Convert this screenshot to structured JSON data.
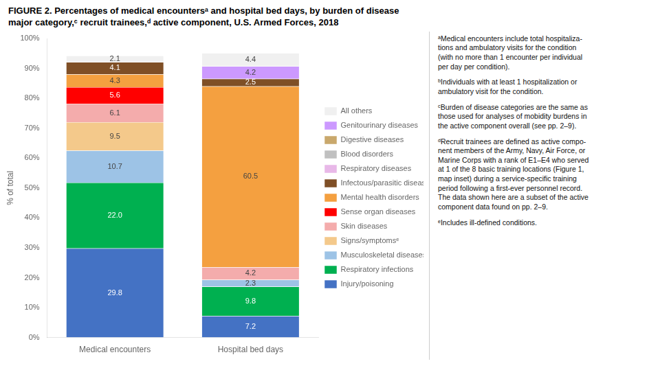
{
  "chart_data": {
    "type": "bar",
    "title": "FIGURE 2. Percentages of medical encountersᵃ and hospital bed days, by burden of disease\nmajor category,ᶜ recruit trainees,ᵈ active component, U.S. Armed Forces, 2018",
    "ylabel": "% of total",
    "categories": [
      "Medical encounters",
      "Hospital bed days"
    ],
    "series": [
      {
        "name": "Injury/poisoning",
        "color": "#4472c4",
        "values": [
          29.8,
          7.2
        ]
      },
      {
        "name": "Respiratory infections",
        "color": "#00b050",
        "values": [
          22.0,
          9.8
        ]
      },
      {
        "name": "Musculoskeletal diseases",
        "color": "#9dc3e6",
        "values": [
          10.7,
          2.3
        ]
      },
      {
        "name": "Signs/symptomsᵉ",
        "color": "#f4c98b",
        "values": [
          9.5,
          0.0
        ]
      },
      {
        "name": "Skin diseases",
        "color": "#f4acac",
        "values": [
          6.1,
          4.2
        ]
      },
      {
        "name": "Sense organ diseases",
        "color": "#ff0000",
        "values": [
          5.6,
          0.0
        ]
      },
      {
        "name": "Mental health disorders",
        "color": "#f4a040",
        "values": [
          4.3,
          60.5
        ]
      },
      {
        "name": "Infectous/parasitic diseases",
        "color": "#7f4f26",
        "values": [
          4.1,
          2.5
        ]
      },
      {
        "name": "Respiratory diseases",
        "color": "#e8b8e8",
        "values": [
          0.0,
          0.0
        ]
      },
      {
        "name": "Blood disorders",
        "color": "#c0c0c0",
        "values": [
          0.0,
          0.0
        ]
      },
      {
        "name": "Digestive diseases",
        "color": "#c9a86c",
        "values": [
          0.0,
          0.0
        ]
      },
      {
        "name": "Genitourinary diseases",
        "color": "#cc99ff",
        "values": [
          0.0,
          4.2
        ]
      },
      {
        "name": "All others",
        "color": "#f0f0f0",
        "values": [
          2.1,
          4.4
        ]
      }
    ],
    "stacked": true,
    "data_labels": true,
    "legend": "right",
    "grid": false,
    "ylim": [
      0,
      100
    ],
    "yticks": [
      {
        "value": 0,
        "label": "0%"
      },
      {
        "value": 10,
        "label": "10%"
      },
      {
        "value": 20,
        "label": "20%"
      },
      {
        "value": 30,
        "label": "30%"
      },
      {
        "value": 40,
        "label": "40%"
      },
      {
        "value": 50,
        "label": "50%"
      },
      {
        "value": 60,
        "label": "60%"
      },
      {
        "value": 70,
        "label": "70%"
      },
      {
        "value": 80,
        "label": "80%"
      },
      {
        "value": 90,
        "label": "90%"
      },
      {
        "value": 100,
        "label": "100%"
      }
    ],
    "annotations": [
      "ᵃMedical encounters include total hospitaliza-\ntions and ambulatory visits for the condition\n(with no more than 1 encounter per individual\nper day per condition).",
      "ᵇIndividuals with at least 1 hospitalization or\nambulatory visit for the condition.",
      "ᶜBurden of disease categories are the same as\nthose used for analyses of mobidity burdens in\nthe active component overall (see pp. 2–9).",
      "ᵈRecruit trainees are defined as active compo-\nnent members of the Army, Navy, Air Force, or\nMarine Corps with a rank of E1–E4 who served\nat 1 of the 8 basic training locations (Figure 1,\nmap inset) during a service-specific training\nperiod following a first-ever personnel record.\nThe data shown here are a subset of the active\ncomponent data found on pp. 2–9.",
      "ᵉIncludes ill-defined conditions."
    ]
  }
}
